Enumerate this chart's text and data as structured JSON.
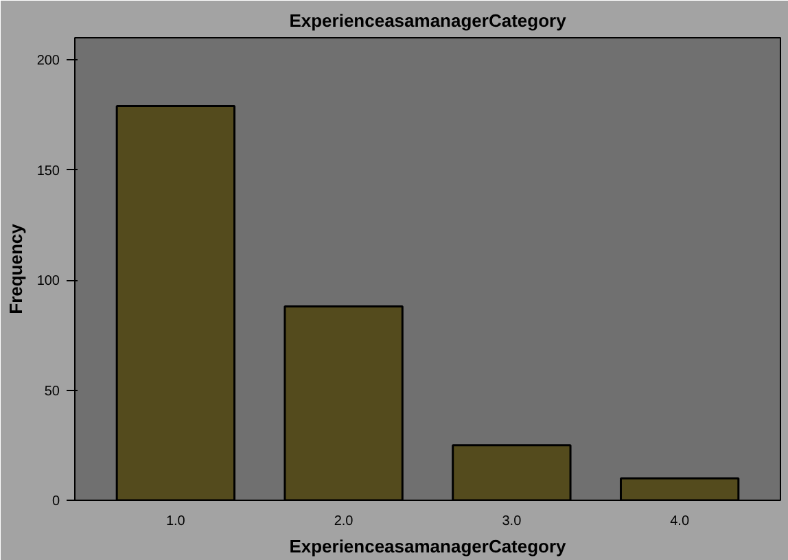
{
  "chart_data": {
    "type": "bar",
    "title": "ExperienceasamanagerCategory",
    "xlabel": "ExperienceasamanagerCategory",
    "ylabel": "Frequency",
    "categories": [
      "1.0",
      "2.0",
      "3.0",
      "4.0"
    ],
    "values": [
      179,
      88,
      25,
      10
    ],
    "color": "#544b1d",
    "ylim": [
      0,
      210
    ],
    "yticks": [
      0,
      50,
      100,
      150,
      200
    ],
    "grid": false
  }
}
